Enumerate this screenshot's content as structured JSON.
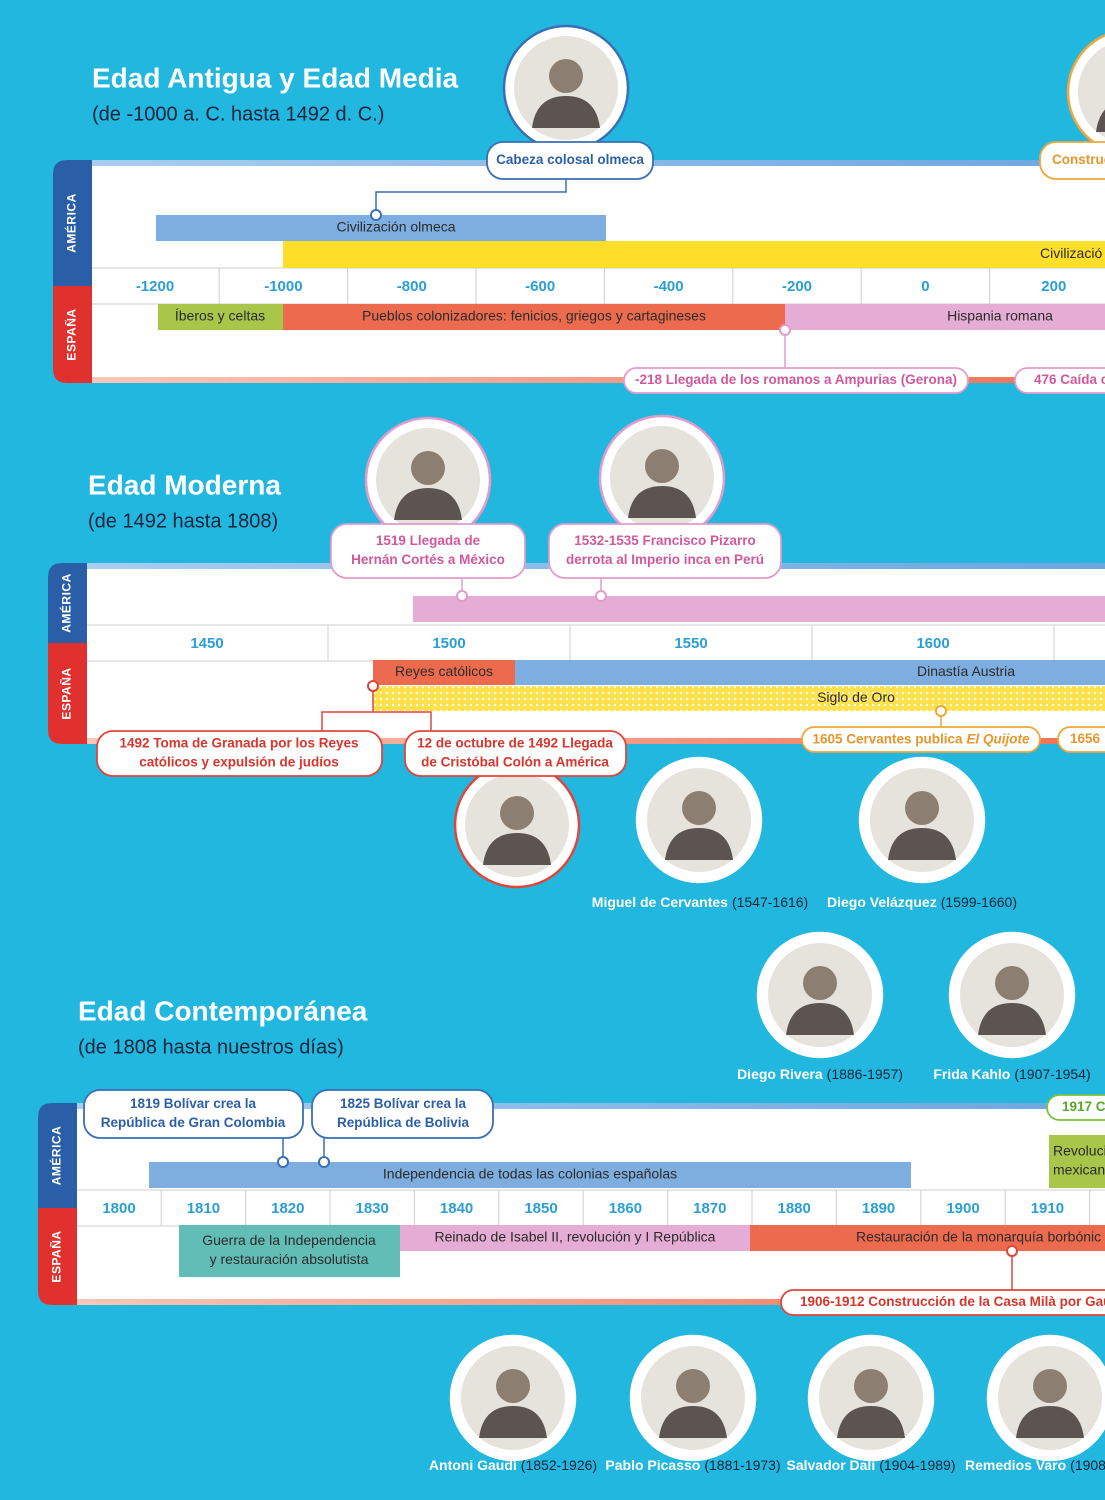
{
  "labels": {
    "america": "AMÉRICA",
    "espana": "ESPAÑA"
  },
  "sections": [
    {
      "title": "Edad Antigua y Edad Media",
      "subtitle": "(de -1000 a. C. hasta 1492 d. C.)",
      "ticks": [
        -1200,
        -1000,
        -800,
        -600,
        -400,
        -200,
        0,
        200
      ],
      "bars": [
        [
          "Civilización olmeca"
        ],
        [
          "Civilizació"
        ],
        [
          "Íberos y celtas"
        ],
        [
          "Pueblos colonizadores: fenicios, griegos y cartagineses"
        ],
        [
          "Hispania romana"
        ]
      ],
      "events": [
        [
          "Cabeza colosal olmeca"
        ],
        [
          "Construc"
        ],
        [
          "-218 Llegada de los romanos a Ampurias (Gerona)"
        ],
        [
          "476 Caída c"
        ]
      ],
      "portraits": []
    },
    {
      "title": "Edad Moderna",
      "subtitle": "(de 1492 hasta 1808)",
      "ticks": [
        1450,
        1500,
        1550,
        1600
      ],
      "bars": [
        [
          "Reyes católicos"
        ],
        [
          "Dinastía Austria"
        ],
        [
          "Siglo de Oro"
        ]
      ],
      "events": [
        [
          "1519 Llegada de",
          "Hernán Cortés a México"
        ],
        [
          "1532-1535 Francisco Pizarro",
          "derrota al Imperio inca en Perú"
        ],
        [
          "1492 Toma de Granada por los Reyes",
          "católicos y expulsión de judíos"
        ],
        [
          "12 de octubre de 1492 Llegada",
          "de Cristóbal Colón a América"
        ],
        [
          "1605 Cervantes publica",
          "El Quijote"
        ],
        [
          "1656"
        ]
      ],
      "portraits": [
        {
          "name": "Miguel de Cervantes",
          "dates": "(1547-1616)"
        },
        {
          "name": "Diego Velázquez",
          "dates": "(1599-1660)"
        }
      ]
    },
    {
      "title": "Edad Contemporánea",
      "subtitle": "(de 1808 hasta nuestros días)",
      "ticks": [
        1800,
        1810,
        1820,
        1830,
        1840,
        1850,
        1860,
        1870,
        1880,
        1890,
        1900,
        1910
      ],
      "bars": [
        [
          "Independencia de todas las colonias españolas"
        ],
        [
          "Revoluci",
          "mexican"
        ],
        [
          "Guerra de la Independencia",
          "y restauración absolutista"
        ],
        [
          "Reinado de Isabel II, revolución y I República"
        ],
        [
          "Restauración de la monarquía borbónic"
        ]
      ],
      "events": [
        [
          "1819 Bolívar crea la",
          "República de Gran Colombia"
        ],
        [
          "1825 Bolívar crea la",
          "República de Bolivia"
        ],
        [
          "1917 Co"
        ],
        [
          "1906-1912 Construcción de la Casa Milà por Gau"
        ]
      ],
      "portraits": [
        {
          "name": "Diego Rivera",
          "dates": "(1886-1957)"
        },
        {
          "name": "Frida Kahlo",
          "dates": "(1907-1954)"
        },
        {
          "name": "Antoni Gaudí",
          "dates": "(1852-1926)"
        },
        {
          "name": "Pablo Picasso",
          "dates": "(1881-1973)"
        },
        {
          "name": "Salvador Dalí",
          "dates": "(1904-1989)"
        },
        {
          "name": "Remedios Varo",
          "dates": "(1908-"
        }
      ]
    }
  ]
}
